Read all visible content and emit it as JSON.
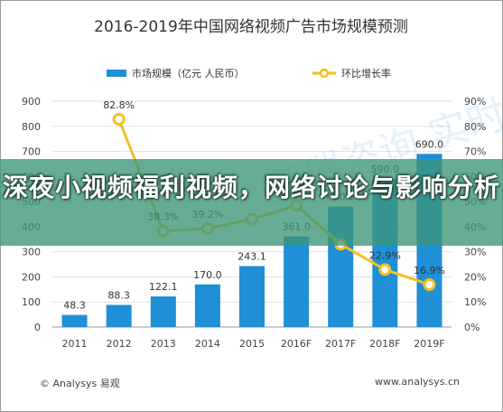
{
  "chart_data": {
    "type": "bar",
    "title": "2016-2019年中国网络视频广告市场规模预测",
    "categories": [
      "2011",
      "2012",
      "2013",
      "2014",
      "2015",
      "2016F",
      "2017F",
      "2018F",
      "2019F"
    ],
    "series": [
      {
        "name": "市场规模（亿元 人民币）",
        "kind": "bar",
        "axis": "left",
        "color": "#1f8fd6",
        "values": [
          48.3,
          88.3,
          122.1,
          170.0,
          243.1,
          361.0,
          480.0,
          590.0,
          690.0
        ],
        "labels": [
          "48.3",
          "88.3",
          "122.1",
          "170.0",
          "243.1",
          "361.0",
          "480.0",
          "590.0",
          "690.0"
        ]
      },
      {
        "name": "环比增长率",
        "kind": "line",
        "axis": "right",
        "color": "#f4c020",
        "values": [
          null,
          82.8,
          38.3,
          39.2,
          43.0,
          48.5,
          33.0,
          22.9,
          16.9
        ],
        "labels": [
          "",
          "82.8%",
          "38.3%",
          "39.2%",
          "",
          "",
          "",
          "22.9%",
          "16.9%"
        ]
      }
    ],
    "ylim_left": [
      0,
      900
    ],
    "yticks_left": [
      "0",
      "100",
      "200",
      "300",
      "400",
      "500",
      "600",
      "700",
      "800",
      "900"
    ],
    "ylim_right": [
      0,
      90
    ],
    "yticks_right": [
      "0%",
      "10%",
      "20%",
      "30%",
      "40%",
      "50%",
      "60%",
      "70%",
      "80%",
      "90%"
    ],
    "grid": true,
    "legend_position": "top-center"
  },
  "banner_title": "深夜小视频福利视频，网络讨论与影响分析",
  "watermark": "艾瑞咨询 实时数据",
  "footer": {
    "copyright": "© Analysys 易观",
    "website": "www.analysys.cn"
  }
}
